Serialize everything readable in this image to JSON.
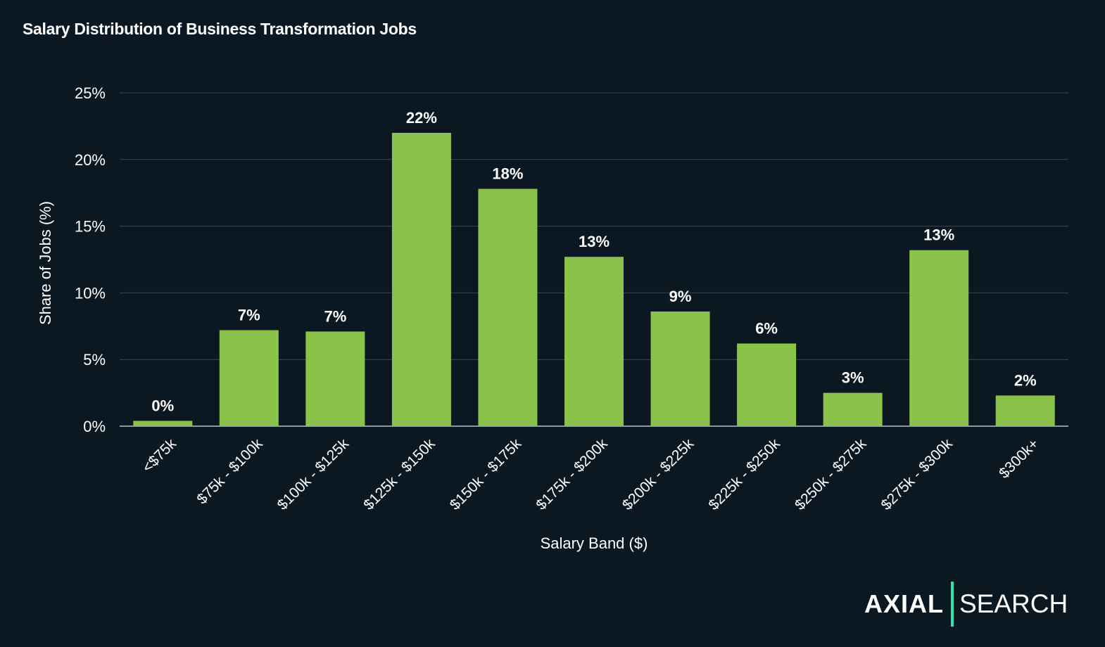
{
  "chart_data": {
    "type": "bar",
    "title": "Salary Distribution of Business Transformation Jobs",
    "xlabel": "Salary Band ($)",
    "ylabel": "Share of Jobs (%)",
    "ylim": [
      0,
      25
    ],
    "yticks": [
      "0%",
      "5%",
      "10%",
      "15%",
      "20%",
      "25%"
    ],
    "grid": true,
    "categories": [
      "<$75k",
      "$75k - $100k",
      "$100k - $125k",
      "$125k - $150k",
      "$150k - $175k",
      "$175k - $200k",
      "$200k - $225k",
      "$225k - $250k",
      "$250k - $275k",
      "$275k - $300k",
      "$300k+"
    ],
    "values": [
      0.4,
      7.2,
      7.1,
      22.0,
      17.8,
      12.7,
      8.6,
      6.2,
      2.5,
      13.2,
      2.3
    ],
    "data_labels": [
      "0%",
      "7%",
      "7%",
      "22%",
      "18%",
      "13%",
      "9%",
      "6%",
      "3%",
      "13%",
      "2%"
    ],
    "colors": {
      "bar": "#8bc34a",
      "background": "#0b1822",
      "grid": "#3a4650"
    }
  },
  "logo": {
    "left": "AXIAL",
    "right": "SEARCH",
    "accent": "#2ee6b0"
  }
}
